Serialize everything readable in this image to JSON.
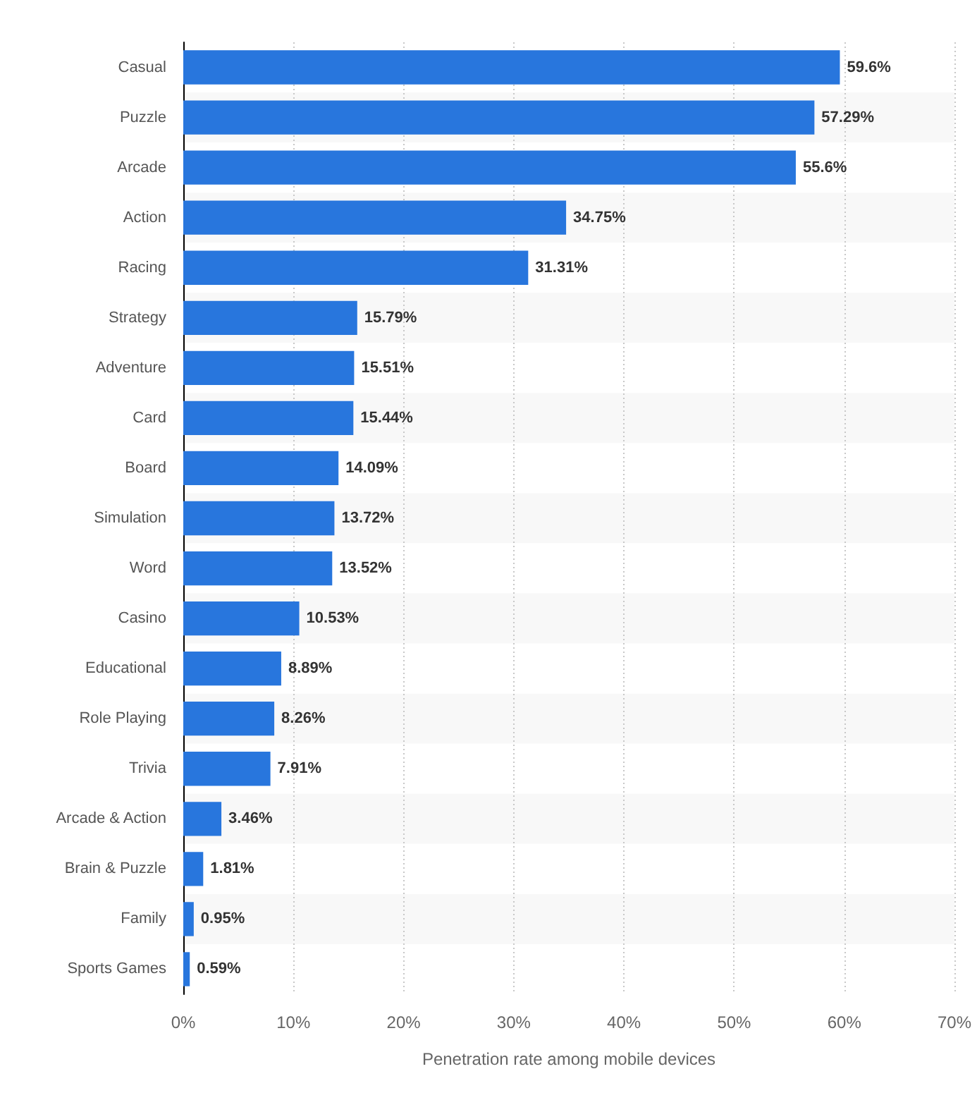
{
  "chart_data": {
    "type": "bar",
    "orientation": "horizontal",
    "xlabel": "Penetration rate among mobile devices",
    "categories": [
      "Casual",
      "Puzzle",
      "Arcade",
      "Action",
      "Racing",
      "Strategy",
      "Adventure",
      "Card",
      "Board",
      "Simulation",
      "Word",
      "Casino",
      "Educational",
      "Role Playing",
      "Trivia",
      "Arcade & Action",
      "Brain & Puzzle",
      "Family",
      "Sports Games"
    ],
    "values": [
      59.6,
      57.29,
      55.6,
      34.75,
      31.31,
      15.79,
      15.51,
      15.44,
      14.09,
      13.72,
      13.52,
      10.53,
      8.89,
      8.26,
      7.91,
      3.46,
      1.81,
      0.95,
      0.59
    ],
    "value_labels": [
      "59.6%",
      "57.29%",
      "55.6%",
      "34.75%",
      "31.31%",
      "15.79%",
      "15.51%",
      "15.44%",
      "14.09%",
      "13.72%",
      "13.52%",
      "10.53%",
      "8.89%",
      "8.26%",
      "7.91%",
      "3.46%",
      "1.81%",
      "0.95%",
      "0.59%"
    ],
    "color": "#2876dd",
    "xlim": [
      0,
      70
    ],
    "xticks": [
      {
        "value": 0,
        "label": "0%"
      },
      {
        "value": 10,
        "label": "10%"
      },
      {
        "value": 20,
        "label": "20%"
      },
      {
        "value": 30,
        "label": "30%"
      },
      {
        "value": 40,
        "label": "40%"
      },
      {
        "value": 50,
        "label": "50%"
      },
      {
        "value": 60,
        "label": "60%"
      },
      {
        "value": 70,
        "label": "70%"
      }
    ],
    "grid": "x"
  }
}
